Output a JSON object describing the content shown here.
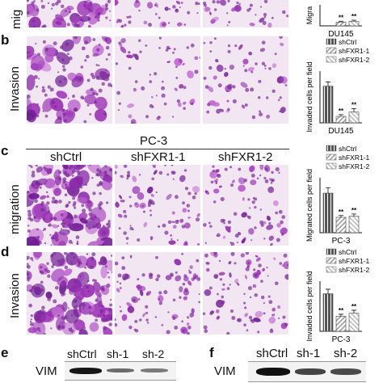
{
  "panels": {
    "a": {
      "row_label": "mig"
    },
    "b": {
      "letter": "b",
      "row_label": "Invasion"
    },
    "c": {
      "letter": "c",
      "cell_line": "PC-3",
      "columns": [
        "shCtrl",
        "shFXR1-1",
        "shFXR1-2"
      ],
      "row_label": "migration"
    },
    "d": {
      "letter": "d",
      "row_label": "Invasion"
    },
    "e": {
      "letter": "e",
      "lanes": [
        "shCtrl",
        "sh-1",
        "sh-2"
      ],
      "protein": "VIM"
    },
    "f": {
      "letter": "f",
      "lanes": [
        "shCtrl",
        "sh-1",
        "sh-2"
      ],
      "protein": "VIM"
    }
  },
  "chart_data": [
    {
      "id": "a-migration-du145",
      "type": "bar",
      "categories": [
        "shCtrl",
        "shFXR1-1",
        "shFXR1-2"
      ],
      "values": [
        null,
        18,
        22
      ],
      "errors": [
        null,
        4,
        5
      ],
      "significance": [
        "",
        "**",
        "**"
      ],
      "ylabel": "Migra",
      "xlabel": "DU145",
      "ylim": [
        0,
        100
      ],
      "colors": [
        "#555555",
        "#999999",
        "#bbbbbb"
      ]
    },
    {
      "id": "b-invasion-du145",
      "type": "bar",
      "categories": [
        "shCtrl",
        "shFXR1-1",
        "shFXR1-2"
      ],
      "legend": [
        "shCtrl",
        "shFXR1-1",
        "shFXR1-2"
      ],
      "values": [
        85,
        15,
        25
      ],
      "errors": [
        10,
        4,
        8
      ],
      "significance": [
        "",
        "**",
        "**"
      ],
      "ylabel": "Invaded cells per field",
      "xlabel": "DU145",
      "ylim": [
        0,
        120
      ],
      "colors": [
        "#555555",
        "#999999",
        "#bbbbbb"
      ]
    },
    {
      "id": "c-migration-pc3",
      "type": "bar",
      "categories": [
        "shCtrl",
        "shFXR1-1",
        "shFXR1-2"
      ],
      "legend": [
        "shCtrl",
        "shFXR1-1",
        "shFXR1-2"
      ],
      "values": [
        180,
        70,
        75
      ],
      "errors": [
        25,
        8,
        10
      ],
      "significance": [
        "",
        "**",
        "**"
      ],
      "ylabel": "Migrated cells per field",
      "xlabel": "PC-3",
      "ylim": [
        0,
        250
      ],
      "colors": [
        "#555555",
        "#999999",
        "#bbbbbb"
      ]
    },
    {
      "id": "d-invasion-pc3",
      "type": "bar",
      "categories": [
        "shCtrl",
        "shFXR1-1",
        "shFXR1-2"
      ],
      "legend": [
        "shCtrl",
        "shFXR1-1",
        "shFXR1-2"
      ],
      "values": [
        150,
        60,
        72
      ],
      "errors": [
        18,
        8,
        12
      ],
      "significance": [
        "",
        "**",
        "**"
      ],
      "ylabel": "Invaded cells per field",
      "xlabel": "PC-3",
      "ylim": [
        0,
        200
      ],
      "colors": [
        "#555555",
        "#999999",
        "#bbbbbb"
      ]
    }
  ]
}
